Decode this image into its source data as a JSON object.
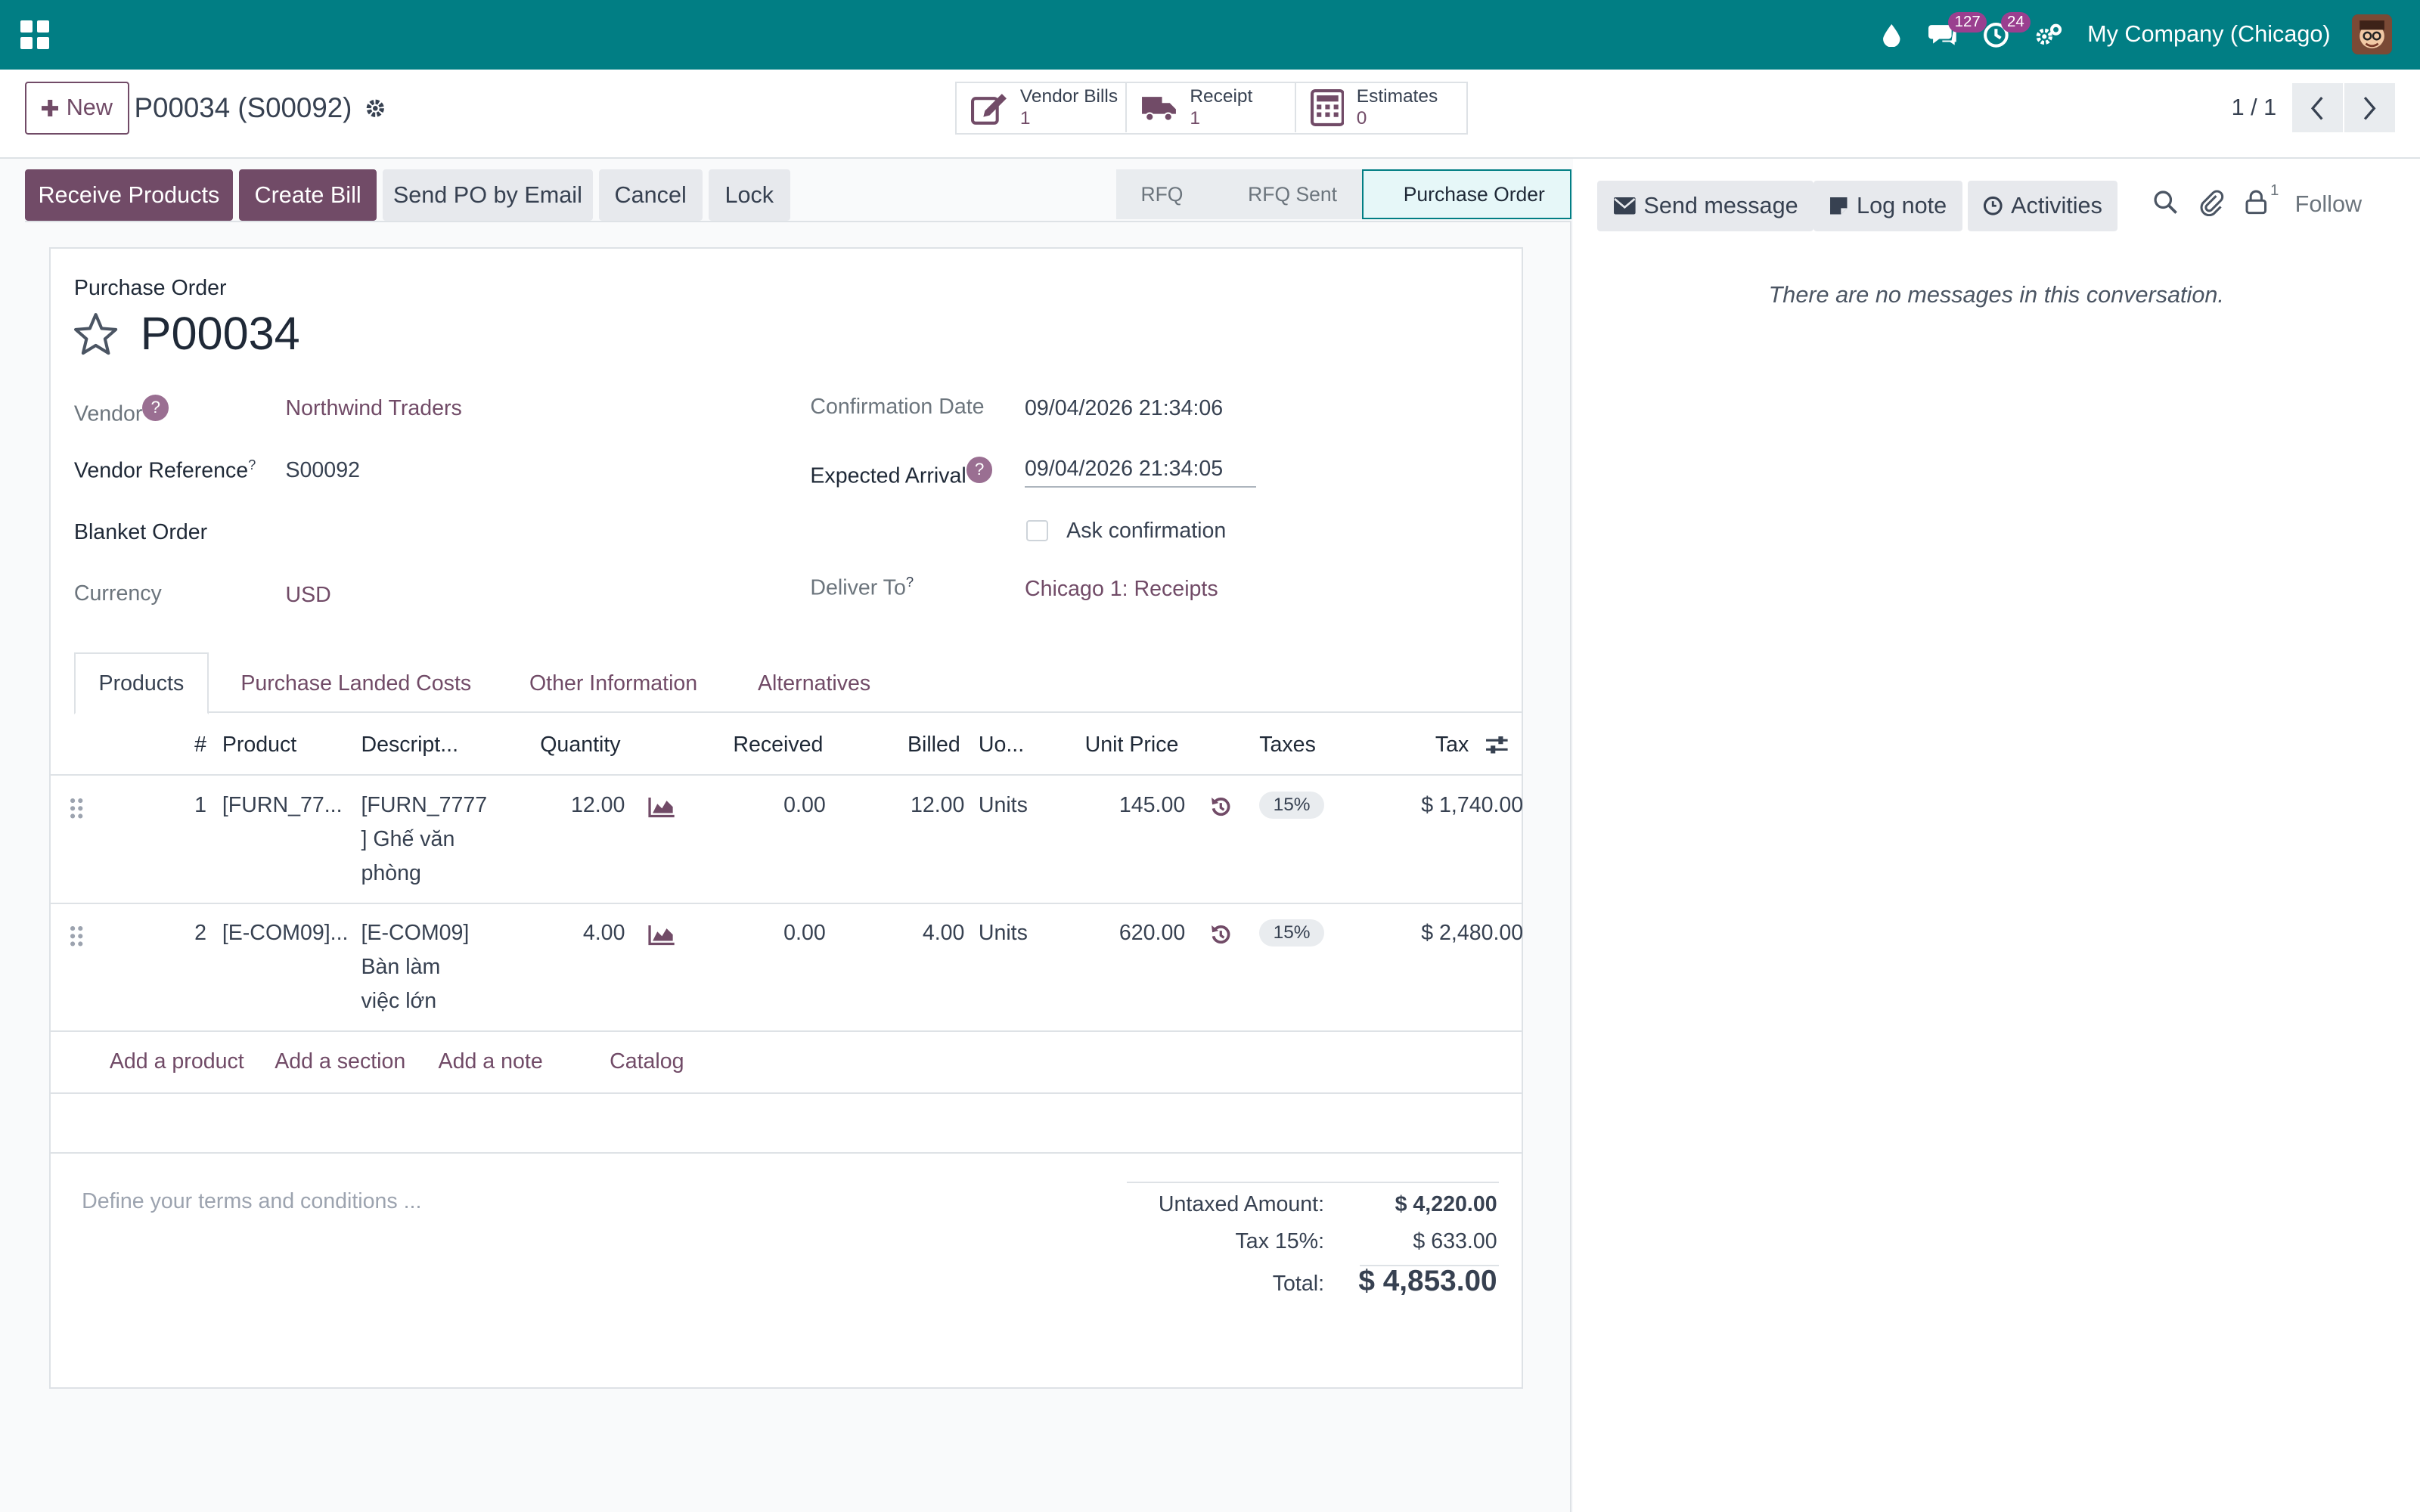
{
  "navbar": {
    "company": "My Company (Chicago)",
    "messages_count": "127",
    "activities_count": "24",
    "bg_color": "#017e84"
  },
  "control_panel": {
    "new_label": "New",
    "record_title": "P00034 (S00092)",
    "smart_buttons": [
      {
        "label": "Vendor Bills",
        "value": "1",
        "icon": "pencil-square-icon"
      },
      {
        "label": "Receipt",
        "value": "1",
        "icon": "truck-icon"
      },
      {
        "label": "Estimates",
        "value": "0",
        "icon": "calculator-icon"
      }
    ],
    "pager": "1 / 1"
  },
  "statusbar": {
    "buttons": [
      "Receive Products",
      "Create Bill",
      "Send PO by Email",
      "Cancel",
      "Lock"
    ],
    "stages": [
      "RFQ",
      "RFQ Sent",
      "Purchase Order"
    ],
    "active_stage": "Purchase Order"
  },
  "form": {
    "doc_type": "Purchase Order",
    "name": "P00034",
    "vendor_label": "Vendor",
    "vendor": "Northwind Traders",
    "vendor_ref_label": "Vendor Reference",
    "vendor_ref": "S00092",
    "blanket_label": "Blanket Order",
    "currency_label": "Currency",
    "currency": "USD",
    "confirmation_date_label": "Confirmation Date",
    "confirmation_date": "09/04/2026 21:34:06",
    "expected_arrival_label": "Expected Arrival",
    "expected_arrival": "09/04/2026 21:34:05",
    "ask_confirmation_label": "Ask confirmation",
    "deliver_to_label": "Deliver To",
    "deliver_to": "Chicago 1: Receipts",
    "help_mark": "?",
    "help_sup": "?"
  },
  "tabs": [
    "Products",
    "Purchase Landed Costs",
    "Other Information",
    "Alternatives"
  ],
  "lines": {
    "headers": {
      "num": "#",
      "product": "Product",
      "description": "Descript...",
      "quantity": "Quantity",
      "received": "Received",
      "billed": "Billed",
      "uom": "Uo...",
      "unit_price": "Unit Price",
      "taxes": "Taxes",
      "tax": "Tax"
    },
    "rows": [
      {
        "num": "1",
        "product": "[FURN_77...",
        "desc1": "[FURN_7777",
        "desc2": "] Ghế văn",
        "desc3": "phòng",
        "quantity": "12.00",
        "received": "0.00",
        "billed": "12.00",
        "uom": "Units",
        "unit_price": "145.00",
        "taxes": "15%",
        "tax": "$ 1,740.00"
      },
      {
        "num": "2",
        "product": "[E-COM09]...",
        "desc1": "[E-COM09]",
        "desc2": "Bàn làm",
        "desc3": "việc lớn",
        "quantity": "4.00",
        "received": "0.00",
        "billed": "4.00",
        "uom": "Units",
        "unit_price": "620.00",
        "taxes": "15%",
        "tax": "$ 2,480.00"
      }
    ],
    "add_product": "Add a product",
    "add_section": "Add a section",
    "add_note": "Add a note",
    "catalog": "Catalog"
  },
  "footer": {
    "terms_placeholder": "Define your terms and conditions ...",
    "untaxed_label": "Untaxed Amount:",
    "untaxed": "$ 4,220.00",
    "tax_label": "Tax 15%:",
    "tax": "$ 633.00",
    "total_label": "Total:",
    "total": "$ 4,853.00"
  },
  "chatter": {
    "send_message": "Send message",
    "log_note": "Log note",
    "activities": "Activities",
    "followers_count": "1",
    "follow": "Follow",
    "empty": "There are no messages in this conversation."
  }
}
